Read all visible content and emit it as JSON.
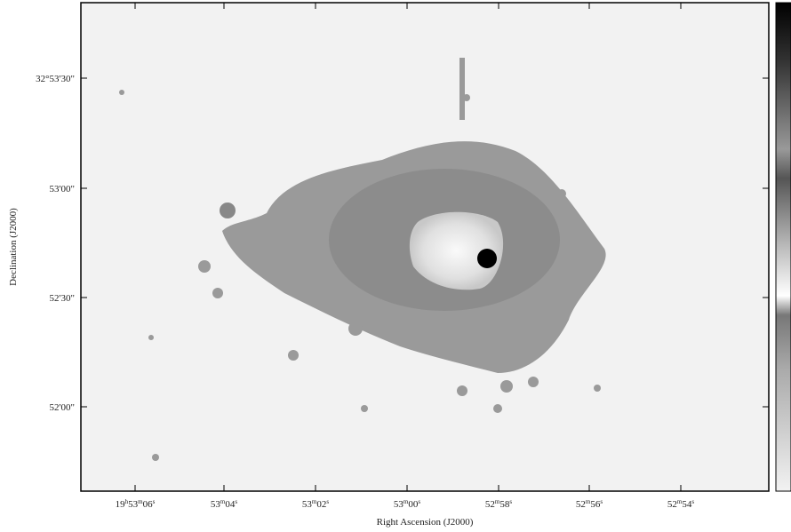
{
  "axes": {
    "x_title": "Right Ascension (J2000)",
    "y_title": "Declination (J2000)",
    "x_tick_labels": [
      [
        "19",
        "h",
        "53",
        "m",
        "06",
        "s"
      ],
      [
        "53",
        "m",
        "04",
        "s"
      ],
      [
        "53",
        "m",
        "02",
        "s"
      ],
      [
        "53",
        "m",
        "00",
        "s"
      ],
      [
        "52",
        "m",
        "58",
        "s"
      ],
      [
        "52",
        "m",
        "56",
        "s"
      ],
      [
        "52",
        "m",
        "54",
        "s"
      ]
    ],
    "y_tick_labels": [
      "32°53'30\"",
      "53'00\"",
      "52'30\"",
      "52'00\""
    ]
  }
}
